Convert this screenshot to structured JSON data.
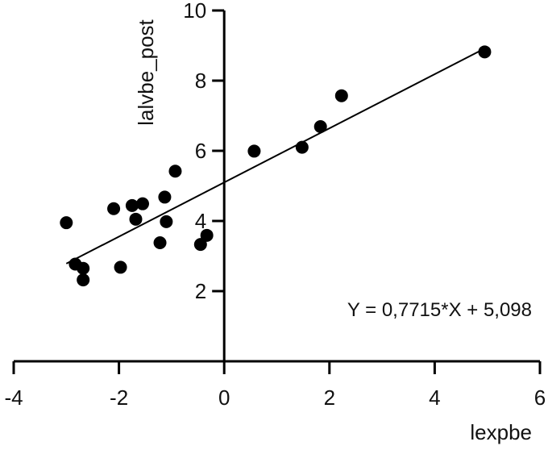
{
  "chart_data": {
    "type": "scatter",
    "title": "",
    "xlabel": "lexpbe",
    "ylabel": "lalvbe_post",
    "xlim": [
      -4,
      6
    ],
    "ylim": [
      0,
      10
    ],
    "x_ticks": [
      -4,
      -2,
      0,
      2,
      4,
      6
    ],
    "x_tick_labels": [
      "-4",
      "-2",
      "0",
      "2",
      "4",
      "6"
    ],
    "y_ticks": [
      2,
      4,
      6,
      8,
      10
    ],
    "y_tick_labels": [
      "2",
      "4",
      "6",
      "8",
      "10"
    ],
    "grid": false,
    "points": [
      {
        "x": -3.0,
        "y": 3.95
      },
      {
        "x": -2.83,
        "y": 2.77
      },
      {
        "x": -2.68,
        "y": 2.65
      },
      {
        "x": -2.68,
        "y": 2.32
      },
      {
        "x": -2.1,
        "y": 4.35
      },
      {
        "x": -1.97,
        "y": 2.68
      },
      {
        "x": -1.75,
        "y": 4.44
      },
      {
        "x": -1.68,
        "y": 4.05
      },
      {
        "x": -1.55,
        "y": 4.49
      },
      {
        "x": -1.22,
        "y": 3.38
      },
      {
        "x": -1.13,
        "y": 4.68
      },
      {
        "x": -1.1,
        "y": 3.98
      },
      {
        "x": -0.93,
        "y": 5.42
      },
      {
        "x": -0.45,
        "y": 3.33
      },
      {
        "x": -0.33,
        "y": 3.59
      },
      {
        "x": 0.57,
        "y": 5.99
      },
      {
        "x": 1.48,
        "y": 6.1
      },
      {
        "x": 1.83,
        "y": 6.69
      },
      {
        "x": 2.23,
        "y": 7.57
      },
      {
        "x": 4.95,
        "y": 8.82
      }
    ],
    "regression": {
      "slope": 0.7715,
      "intercept": 5.098,
      "x_range": [
        -3.0,
        4.95
      ],
      "equation": "Y = 0,7715*X + 5,098"
    }
  }
}
